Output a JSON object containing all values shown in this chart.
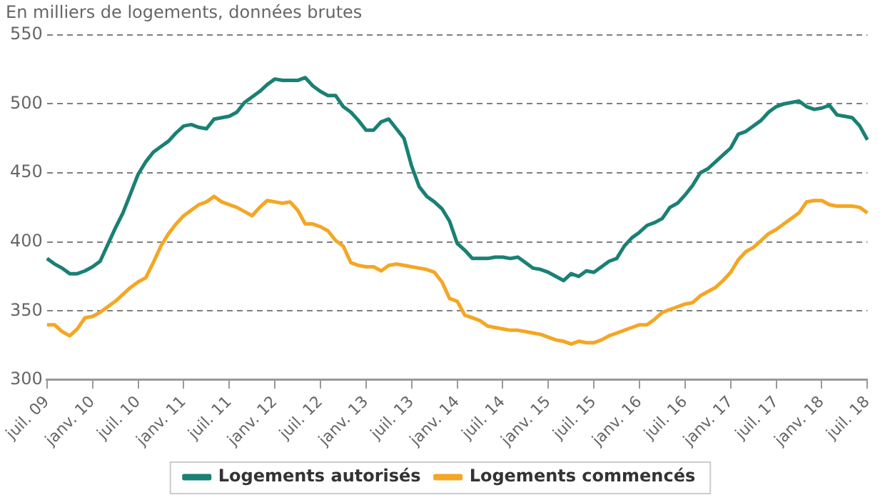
{
  "chart_data": {
    "type": "line",
    "title": "En milliers de logements, données brutes",
    "categories": [
      "juil. 09",
      null,
      null,
      null,
      null,
      null,
      "janv. 10",
      null,
      null,
      null,
      null,
      null,
      "juil. 10",
      null,
      null,
      null,
      null,
      null,
      "janv. 11",
      null,
      null,
      null,
      null,
      null,
      "juil. 11",
      null,
      null,
      null,
      null,
      null,
      "janv. 12",
      null,
      null,
      null,
      null,
      null,
      "juil. 12",
      null,
      null,
      null,
      null,
      null,
      "janv. 13",
      null,
      null,
      null,
      null,
      null,
      "juil. 13",
      null,
      null,
      null,
      null,
      null,
      "janv. 14",
      null,
      null,
      null,
      null,
      null,
      "juil. 14",
      null,
      null,
      null,
      null,
      null,
      "janv. 15",
      null,
      null,
      null,
      null,
      null,
      "juil. 15",
      null,
      null,
      null,
      null,
      null,
      "janv. 16",
      null,
      null,
      null,
      null,
      null,
      "juil. 16",
      null,
      null,
      null,
      null,
      null,
      "janv. 17",
      null,
      null,
      null,
      null,
      null,
      "juil. 17",
      null,
      null,
      null,
      null,
      null,
      "janv. 18",
      null,
      null,
      null,
      null,
      null,
      "juil. 18"
    ],
    "series": [
      {
        "name": "Logements autorisés",
        "color": "#1a8074",
        "values": [
          388,
          384,
          381,
          377,
          377,
          379,
          382,
          386,
          398,
          410,
          421,
          435,
          449,
          458,
          465,
          469,
          473,
          479,
          484,
          485,
          483,
          482,
          489,
          490,
          491,
          494,
          501,
          505,
          509,
          514,
          518,
          517,
          517,
          517,
          519,
          513,
          509,
          506,
          506,
          498,
          494,
          488,
          481,
          481,
          487,
          489,
          482,
          475,
          455,
          440,
          433,
          429,
          424,
          415,
          399,
          394,
          388,
          388,
          388,
          389,
          389,
          388,
          389,
          385,
          381,
          380,
          378,
          375,
          372,
          377,
          375,
          379,
          378,
          382,
          386,
          388,
          397,
          403,
          407,
          412,
          414,
          417,
          425,
          428,
          434,
          441,
          450,
          453,
          458,
          463,
          468,
          478,
          480,
          484,
          488,
          494,
          498,
          500,
          501,
          502,
          498,
          496,
          497,
          499,
          492,
          491,
          490,
          484,
          474
        ]
      },
      {
        "name": "Logements commencés",
        "color": "#f5a623",
        "values": [
          340,
          340,
          335,
          332,
          337,
          345,
          346,
          349,
          353,
          357,
          362,
          367,
          371,
          374,
          385,
          397,
          406,
          413,
          419,
          423,
          427,
          429,
          433,
          429,
          427,
          425,
          422,
          419,
          425,
          430,
          429,
          428,
          429,
          423,
          413,
          413,
          411,
          408,
          401,
          397,
          385,
          383,
          382,
          382,
          379,
          383,
          384,
          383,
          382,
          381,
          380,
          378,
          371,
          359,
          357,
          347,
          345,
          343,
          339,
          338,
          337,
          336,
          336,
          335,
          334,
          333,
          331,
          329,
          328,
          326,
          328,
          327,
          327,
          329,
          332,
          334,
          336,
          338,
          340,
          340,
          344,
          349,
          351,
          353,
          355,
          356,
          361,
          364,
          367,
          372,
          378,
          387,
          393,
          396,
          401,
          406,
          409,
          413,
          417,
          421,
          429,
          430,
          430,
          427,
          426,
          426,
          426,
          425,
          421
        ]
      }
    ],
    "ylim": [
      300,
      550
    ],
    "yticks": [
      300,
      350,
      400,
      450,
      500,
      550
    ],
    "grid": "y",
    "legend": "bottom",
    "marker": "none",
    "line_style": "solid"
  }
}
